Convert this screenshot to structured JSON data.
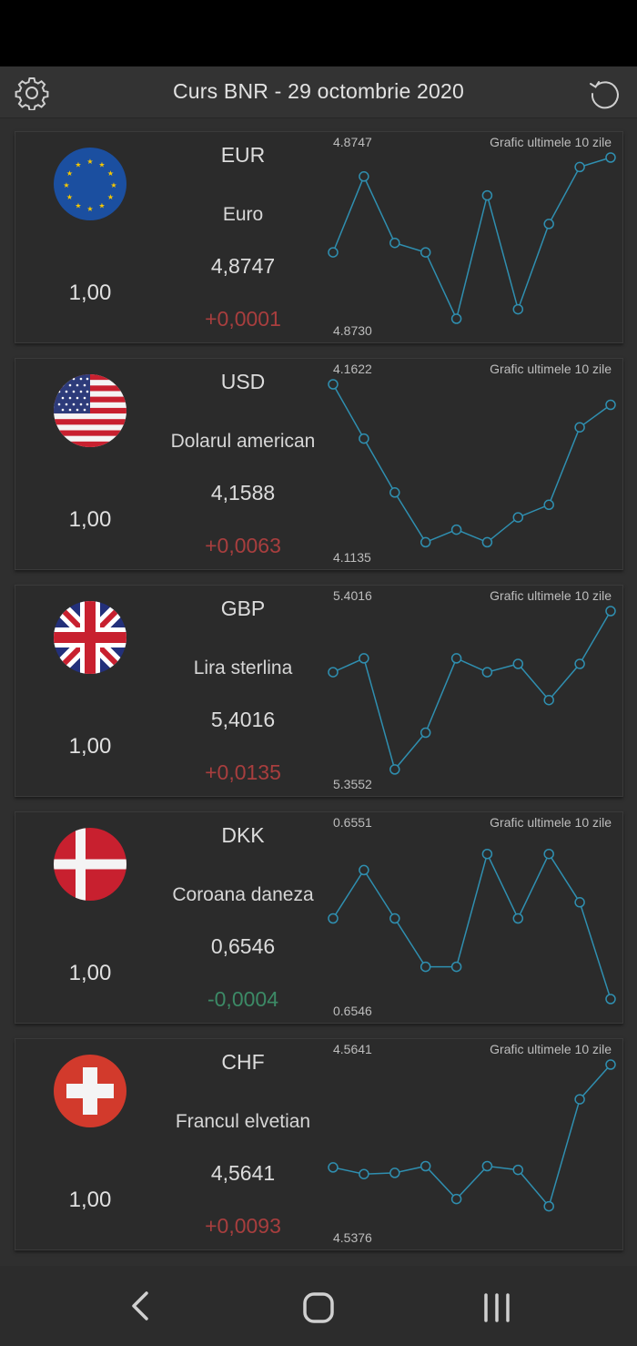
{
  "header": {
    "title": "Curs BNR - 29 octombrie 2020",
    "settings_icon": "gear-icon",
    "refresh_icon": "refresh-icon"
  },
  "colors": {
    "up": "#a83e3e",
    "down": "#3c8a66",
    "chart_line": "#2f8fb0"
  },
  "currencies": [
    {
      "flag": "eu-flag-icon",
      "unit": "1,00",
      "code": "EUR",
      "name": "Euro",
      "rate": "4,8747",
      "change": "+0,0001",
      "direction": "up",
      "chart_label": "Grafic ultimele 10 zile",
      "chart_data": {
        "type": "line",
        "title": "Grafic ultimele 10 zile",
        "max": "4.8747",
        "min": "4.8730",
        "ylim": [
          4.873,
          4.8747
        ],
        "values": [
          4.8737,
          4.8745,
          4.8738,
          4.8737,
          4.873,
          4.8743,
          4.8731,
          4.874,
          4.8746,
          4.8747
        ]
      }
    },
    {
      "flag": "us-flag-icon",
      "unit": "1,00",
      "code": "USD",
      "name": "Dolarul american",
      "rate": "4,1588",
      "change": "+0,0063",
      "direction": "up",
      "chart_label": "Grafic ultimele 10 zile",
      "chart_data": {
        "type": "line",
        "title": "Grafic ultimele 10 zile",
        "max": "4.1622",
        "min": "4.1135",
        "ylim": [
          4.1135,
          4.1622
        ],
        "values": [
          4.1622,
          4.1458,
          4.1295,
          4.1145,
          4.1183,
          4.1145,
          4.122,
          4.1258,
          4.1492,
          4.156
        ]
      }
    },
    {
      "flag": "uk-flag-icon",
      "unit": "1,00",
      "code": "GBP",
      "name": "Lira sterlina",
      "rate": "5,4016",
      "change": "+0,0135",
      "direction": "up",
      "chart_label": "Grafic ultimele 10 zile",
      "chart_data": {
        "type": "line",
        "title": "Grafic ultimele 10 zile",
        "max": "5.4016",
        "min": "5.3552",
        "ylim": [
          5.3552,
          5.4016
        ],
        "values": [
          5.384,
          5.388,
          5.356,
          5.3666,
          5.388,
          5.384,
          5.3864,
          5.376,
          5.3864,
          5.4016
        ]
      }
    },
    {
      "flag": "dk-flag-icon",
      "unit": "1,00",
      "code": "DKK",
      "name": "Coroana daneza",
      "rate": "0,6546",
      "change": "-0,0004",
      "direction": "down",
      "chart_label": "Grafic ultimele 10 zile",
      "chart_data": {
        "type": "line",
        "title": "Grafic ultimele 10 zile",
        "max": "0.6551",
        "min": "0.6546",
        "ylim": [
          0.6546,
          0.6551
        ],
        "values": [
          0.65485,
          0.655,
          0.65485,
          0.6547,
          0.6547,
          0.65505,
          0.65485,
          0.65505,
          0.6549,
          0.6546
        ]
      }
    },
    {
      "flag": "ch-flag-icon",
      "unit": "1,00",
      "code": "CHF",
      "name": "Francul elvetian",
      "rate": "4,5641",
      "change": "+0,0093",
      "direction": "up",
      "chart_label": "Grafic ultimele 10 zile",
      "chart_data": {
        "type": "line",
        "title": "Grafic ultimele 10 zile",
        "max": "4.5641",
        "min": "4.5376",
        "ylim": [
          4.5376,
          4.5641
        ],
        "values": [
          4.5472,
          4.5461,
          4.5463,
          4.5474,
          4.542,
          4.5474,
          4.5468,
          4.5408,
          4.5584,
          4.5641
        ]
      }
    }
  ],
  "navigation": {
    "back_icon": "back-icon",
    "home_icon": "home-icon",
    "recent_icon": "recent-apps-icon"
  }
}
